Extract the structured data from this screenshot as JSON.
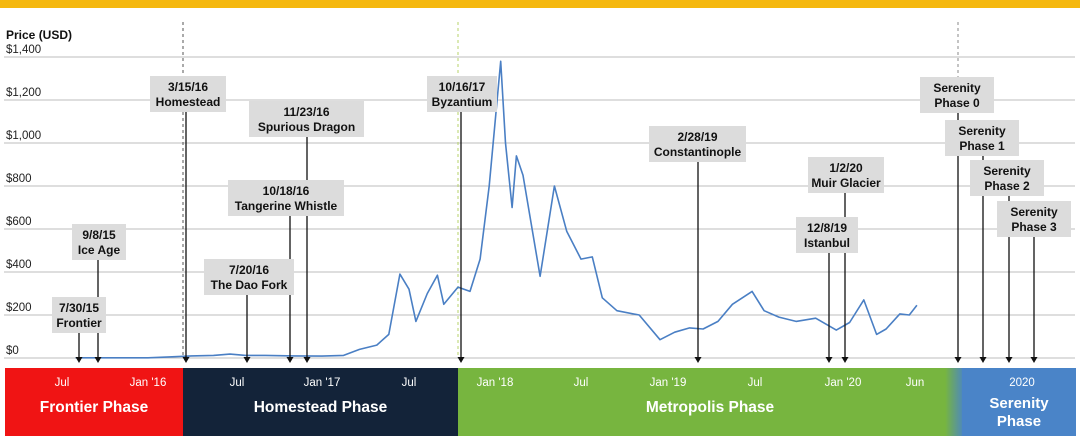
{
  "chart_data": {
    "type": "line",
    "ylabel": "Price (USD)",
    "ylim": [
      0,
      1400
    ],
    "y_ticks": [
      "$0",
      "$200",
      "$400",
      "$600",
      "$800",
      "$1,000",
      "$1,200",
      "$1,400"
    ],
    "x_ticks": [
      {
        "label": "Jul",
        "date": "2015-07-01"
      },
      {
        "label": "Jan '16",
        "date": "2016-01-01"
      },
      {
        "label": "Jul",
        "date": "2016-07-01"
      },
      {
        "label": "Jan '17",
        "date": "2017-01-01"
      },
      {
        "label": "Jul",
        "date": "2017-07-01"
      },
      {
        "label": "Jan '18",
        "date": "2018-01-01"
      },
      {
        "label": "Jul",
        "date": "2018-07-01"
      },
      {
        "label": "Jan '19",
        "date": "2019-01-01"
      },
      {
        "label": "Jul",
        "date": "2019-07-01"
      },
      {
        "label": "Jan '20",
        "date": "2020-01-01"
      },
      {
        "label": "Jun",
        "date": "2020-06-01"
      },
      {
        "label": "2020",
        "date": "2020-12-15"
      }
    ],
    "grid": true,
    "series": [
      {
        "color": "#4a7fc4",
        "points": [
          [
            "2015-07-30",
            1
          ],
          [
            "2015-10-01",
            1
          ],
          [
            "2016-01-01",
            1
          ],
          [
            "2016-02-15",
            5
          ],
          [
            "2016-04-01",
            10
          ],
          [
            "2016-05-15",
            12
          ],
          [
            "2016-06-17",
            18
          ],
          [
            "2016-07-20",
            12
          ],
          [
            "2016-09-01",
            12
          ],
          [
            "2016-11-01",
            10
          ],
          [
            "2017-01-01",
            9
          ],
          [
            "2017-02-15",
            12
          ],
          [
            "2017-03-20",
            40
          ],
          [
            "2017-04-25",
            60
          ],
          [
            "2017-05-20",
            110
          ],
          [
            "2017-06-12",
            390
          ],
          [
            "2017-07-01",
            320
          ],
          [
            "2017-07-16",
            170
          ],
          [
            "2017-08-10",
            300
          ],
          [
            "2017-09-01",
            385
          ],
          [
            "2017-09-15",
            250
          ],
          [
            "2017-10-16",
            330
          ],
          [
            "2017-11-10",
            310
          ],
          [
            "2017-12-01",
            460
          ],
          [
            "2017-12-20",
            800
          ],
          [
            "2018-01-13",
            1380
          ],
          [
            "2018-01-23",
            1000
          ],
          [
            "2018-02-06",
            700
          ],
          [
            "2018-02-15",
            940
          ],
          [
            "2018-03-01",
            850
          ],
          [
            "2018-04-06",
            380
          ],
          [
            "2018-05-06",
            800
          ],
          [
            "2018-06-01",
            590
          ],
          [
            "2018-07-01",
            460
          ],
          [
            "2018-07-25",
            470
          ],
          [
            "2018-08-15",
            280
          ],
          [
            "2018-09-15",
            220
          ],
          [
            "2018-11-01",
            200
          ],
          [
            "2018-12-15",
            85
          ],
          [
            "2019-01-15",
            120
          ],
          [
            "2019-02-15",
            140
          ],
          [
            "2019-03-15",
            135
          ],
          [
            "2019-04-15",
            170
          ],
          [
            "2019-05-15",
            250
          ],
          [
            "2019-06-25",
            310
          ],
          [
            "2019-07-20",
            220
          ],
          [
            "2019-08-20",
            190
          ],
          [
            "2019-09-25",
            170
          ],
          [
            "2019-11-05",
            185
          ],
          [
            "2019-12-18",
            130
          ],
          [
            "2020-01-15",
            165
          ],
          [
            "2020-02-14",
            270
          ],
          [
            "2020-03-12",
            110
          ],
          [
            "2020-04-01",
            135
          ],
          [
            "2020-04-30",
            205
          ],
          [
            "2020-05-20",
            200
          ],
          [
            "2020-06-05",
            245
          ]
        ]
      }
    ],
    "annotations": [
      {
        "date_label": "7/30/15",
        "name": "Frontier",
        "date": "2015-07-30"
      },
      {
        "date_label": "9/8/15",
        "name": "Ice Age",
        "date": "2015-09-08"
      },
      {
        "date_label": "3/15/16",
        "name": "Homestead",
        "date": "2016-03-15"
      },
      {
        "date_label": "7/20/16",
        "name": "The Dao Fork",
        "date": "2016-07-20"
      },
      {
        "date_label": "10/18/16",
        "name": "Tangerine Whistle",
        "date": "2016-10-18"
      },
      {
        "date_label": "11/23/16",
        "name": "Spurious Dragon",
        "date": "2016-11-23"
      },
      {
        "date_label": "10/16/17",
        "name": "Byzantium",
        "date": "2017-10-16"
      },
      {
        "date_label": "2/28/19",
        "name": "Constantinople",
        "date": "2019-02-28"
      },
      {
        "date_label": "12/8/19",
        "name": "Istanbul",
        "date": "2019-12-08"
      },
      {
        "date_label": "1/2/20",
        "name": "Muir Glacier",
        "date": "2020-01-02"
      },
      {
        "date_label": "",
        "name": "Serenity Phase 0",
        "date": "2020-09-01"
      },
      {
        "date_label": "",
        "name": "Serenity Phase 1",
        "date": "2020-10-01"
      },
      {
        "date_label": "",
        "name": "Serenity Phase 2",
        "date": "2020-11-01"
      },
      {
        "date_label": "",
        "name": "Serenity Phase 3",
        "date": "2020-12-01"
      }
    ],
    "phases": [
      {
        "label": "Frontier Phase",
        "color": "#f01414",
        "start": "2015-06-01",
        "end": "2016-03-15"
      },
      {
        "label": "Homestead Phase",
        "color": "#132339",
        "start": "2016-03-15",
        "end": "2017-10-16"
      },
      {
        "label": "Metropolis Phase",
        "color": "#77b53f",
        "start": "2017-10-16",
        "end": "2020-07-15"
      },
      {
        "label": "Serenity Phase",
        "color": "#4a84c8",
        "start": "2020-07-15",
        "end": "2021-03-01"
      }
    ]
  }
}
